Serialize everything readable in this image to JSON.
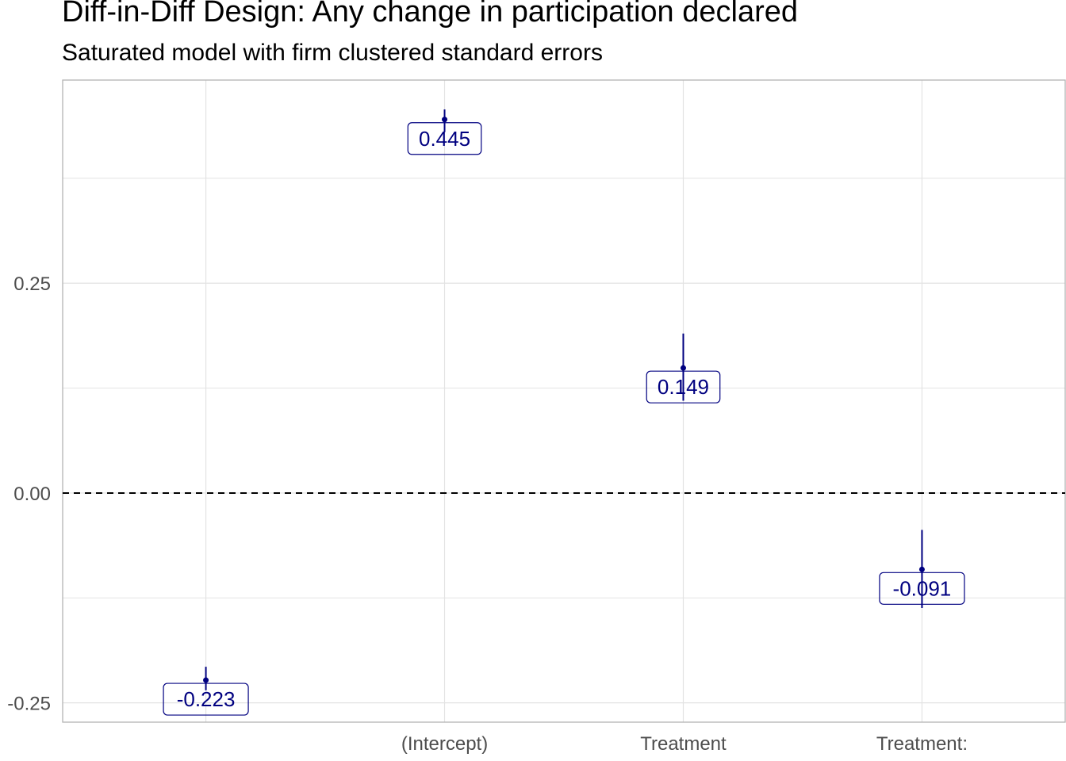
{
  "title": "Diff-in-Diff Design: Any change in participation declared",
  "subtitle": "Saturated model with firm clustered standard errors",
  "chart_data": {
    "type": "scatter",
    "title": "Diff-in-Diff Design: Any change in participation declared",
    "subtitle": "Saturated model with firm clustered standard errors",
    "categories": [
      "",
      "(Intercept)",
      "Treatment",
      "Treatment:"
    ],
    "estimates": [
      -0.223,
      0.445,
      0.149,
      -0.091
    ],
    "ci_low": [
      -0.235,
      0.43,
      0.11,
      -0.137
    ],
    "ci_high": [
      -0.207,
      0.457,
      0.19,
      -0.044
    ],
    "labels": [
      "-0.223",
      "0.445",
      "0.149",
      "-0.091"
    ],
    "y_ticks": [
      -0.25,
      0.0,
      0.25
    ],
    "y_tick_labels": [
      "-0.25",
      "0.00",
      "0.25"
    ],
    "ylim": [
      -0.273,
      0.492
    ],
    "reference_line": 0.0,
    "xlabel": "",
    "ylabel": "",
    "grid": true,
    "colors": {
      "series": "#000080",
      "grid": "#e3e3e3",
      "panel_border": "#b3b3b3",
      "ref_line": "#000000"
    }
  }
}
